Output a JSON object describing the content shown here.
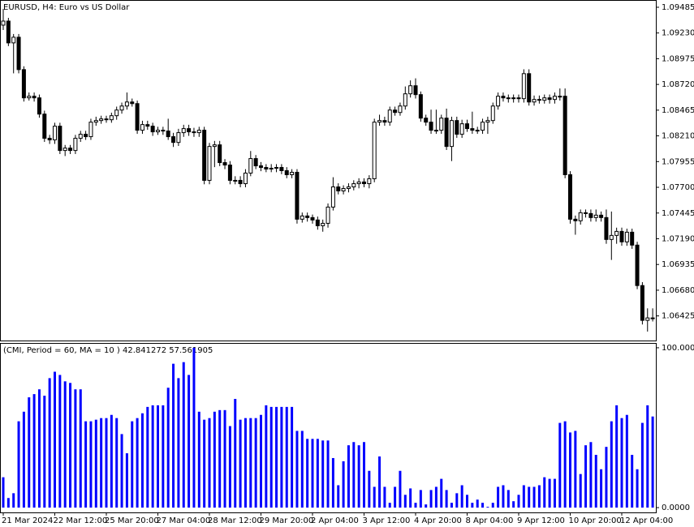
{
  "chart_data": [
    {
      "type": "candlestick",
      "title": "EURUSD, H4:  Euro vs US Dollar",
      "categories": [
        "21 Mar 2024",
        null,
        null,
        null,
        null,
        null,
        null,
        null,
        null,
        null,
        "22 Mar 12:00",
        null,
        null,
        null,
        null,
        null,
        null,
        null,
        null,
        null,
        "25 Mar 20:00",
        null,
        null,
        null,
        null,
        null,
        null,
        null,
        null,
        null,
        "27 Mar 04:00",
        null,
        null,
        null,
        null,
        null,
        null,
        null,
        null,
        null,
        "28 Mar 12:00",
        null,
        null,
        null,
        null,
        null,
        null,
        null,
        null,
        null,
        "29 Mar 20:00",
        null,
        null,
        null,
        null,
        null,
        null,
        null,
        null,
        null,
        "2 Apr 04:00",
        null,
        null,
        null,
        null,
        null,
        null,
        null,
        null,
        null,
        "3 Apr 12:00",
        null,
        null,
        null,
        null,
        null,
        null,
        null,
        null,
        null,
        "4 Apr 20:00",
        null,
        null,
        null,
        null,
        null,
        null,
        null,
        null,
        null,
        "8 Apr 04:00",
        null,
        null,
        null,
        null,
        null,
        null,
        null,
        null,
        null,
        "9 Apr 12:00",
        null,
        null,
        null,
        null,
        null,
        null,
        null,
        null,
        null,
        "10 Apr 20:00",
        null,
        null,
        null,
        null,
        null,
        null,
        null,
        null,
        null,
        "12 Apr 04:00",
        null,
        null,
        null,
        null,
        null,
        null
      ],
      "open": [
        1.09308,
        1.09348,
        1.09132,
        1.09188,
        1.08867,
        1.08587,
        1.08603,
        1.08587,
        1.08426,
        1.08186,
        1.0817,
        1.08306,
        1.08065,
        1.08089,
        1.08065,
        1.08186,
        1.08226,
        1.08202,
        1.08346,
        1.08362,
        1.08378,
        1.0837,
        1.0841,
        1.08466,
        1.08506,
        1.08546,
        1.0853,
        1.08266,
        1.08322,
        1.08306,
        1.0825,
        1.08266,
        1.08258,
        1.08202,
        1.08145,
        1.08242,
        1.08282,
        1.0825,
        1.08242,
        1.08266,
        1.07769,
        1.08105,
        1.08121,
        1.07945,
        1.07921,
        1.07769,
        1.07769,
        1.07736,
        1.07841,
        1.07985,
        1.07913,
        1.07897,
        1.07881,
        1.07889,
        1.07897,
        1.07865,
        1.07825,
        1.07849,
        1.07384,
        1.07416,
        1.074,
        1.07376,
        1.07319,
        1.07343,
        1.07504,
        1.07704,
        1.07664,
        1.07688,
        1.07704,
        1.07736,
        1.07753,
        1.07736,
        1.07785,
        1.08346,
        1.08362,
        1.08346,
        1.08466,
        1.08442,
        1.08506,
        1.08627,
        1.08707,
        1.08619,
        1.08386,
        1.08346,
        1.08266,
        1.08266,
        1.08386,
        1.08105,
        1.08362,
        1.08226,
        1.0833,
        1.08282,
        1.08266,
        1.08266,
        1.08346,
        1.08362,
        1.08506,
        1.08603,
        1.08587,
        1.08579,
        1.08587,
        1.08579,
        1.08827,
        1.08546,
        1.08571,
        1.08563,
        1.08587,
        1.08571,
        1.08603,
        1.08603,
        1.07825,
        1.07384,
        1.07368,
        1.07448,
        1.0744,
        1.074,
        1.07424,
        1.074,
        1.07183,
        1.07223,
        1.07263,
        1.07159,
        1.07255,
        1.07127,
        1.06726,
        1.06381,
        1.06405
      ],
      "high": [
        1.09469,
        1.0938,
        1.0922,
        1.0922,
        1.089,
        1.0864,
        1.0864,
        1.0862,
        1.0846,
        1.0822,
        1.0834,
        1.0834,
        1.0812,
        1.0812,
        1.0822,
        1.0826,
        1.0826,
        1.0838,
        1.084,
        1.0841,
        1.0841,
        1.0844,
        1.085,
        1.0854,
        1.0864,
        1.0858,
        1.0856,
        1.0836,
        1.0836,
        1.0834,
        1.083,
        1.083,
        1.0838,
        1.0824,
        1.0828,
        1.0832,
        1.0832,
        1.0829,
        1.083,
        1.083,
        1.0814,
        1.0816,
        1.0816,
        1.0798,
        1.0796,
        1.0781,
        1.0781,
        1.0788,
        1.0806,
        1.0802,
        1.0795,
        1.0793,
        1.0793,
        1.0793,
        1.0793,
        1.079,
        1.0788,
        1.0788,
        1.0745,
        1.0745,
        1.0743,
        1.0741,
        1.0738,
        1.0754,
        1.078,
        1.0774,
        1.0772,
        1.0774,
        1.0777,
        1.0779,
        1.0779,
        1.0782,
        1.0838,
        1.0842,
        1.084,
        1.085,
        1.085,
        1.0854,
        1.087,
        1.0876,
        1.0878,
        1.0865,
        1.0842,
        1.0847,
        1.0847,
        1.0842,
        1.0848,
        1.084,
        1.084,
        1.0837,
        1.0837,
        1.0845,
        1.083,
        1.0838,
        1.084,
        1.0854,
        1.0864,
        1.0864,
        1.0862,
        1.0862,
        1.0862,
        1.0887,
        1.0887,
        1.0861,
        1.0861,
        1.0862,
        1.0862,
        1.0864,
        1.0868,
        1.0868,
        1.0786,
        1.0742,
        1.0748,
        1.0748,
        1.0748,
        1.0748,
        1.0746,
        1.0748,
        1.0746,
        1.073,
        1.073,
        1.0729,
        1.0729,
        1.0716,
        1.0676,
        1.065,
        1.065
      ],
      "low": [
        1.0926,
        1.091,
        1.0883,
        1.0883,
        1.0855,
        1.0856,
        1.0855,
        1.0839,
        1.0815,
        1.0813,
        1.0813,
        1.0803,
        1.0801,
        1.0803,
        1.0803,
        1.0815,
        1.0817,
        1.0817,
        1.0831,
        1.0833,
        1.0834,
        1.0834,
        1.0837,
        1.0843,
        1.0847,
        1.085,
        1.0823,
        1.0823,
        1.0827,
        1.0821,
        1.0822,
        1.0822,
        1.0817,
        1.081,
        1.0811,
        1.082,
        1.0821,
        1.082,
        1.082,
        1.0773,
        1.0773,
        1.079,
        1.0791,
        1.0788,
        1.0773,
        1.0773,
        1.077,
        1.077,
        1.0781,
        1.0788,
        1.0786,
        1.0785,
        1.0785,
        1.0785,
        1.0783,
        1.0779,
        1.0779,
        1.0734,
        1.0735,
        1.0736,
        1.0734,
        1.0728,
        1.0726,
        1.073,
        1.0747,
        1.0763,
        1.0763,
        1.0765,
        1.0767,
        1.0769,
        1.077,
        1.0769,
        1.0775,
        1.0831,
        1.0831,
        1.0831,
        1.0841,
        1.0841,
        1.0847,
        1.0859,
        1.0858,
        1.0835,
        1.0831,
        1.0823,
        1.0823,
        1.0823,
        1.0807,
        1.0796,
        1.0819,
        1.0819,
        1.0825,
        1.0823,
        1.0823,
        1.0823,
        1.0823,
        1.0833,
        1.0847,
        1.0855,
        1.0854,
        1.0854,
        1.0854,
        1.0854,
        1.0851,
        1.0851,
        1.0853,
        1.0853,
        1.0853,
        1.0853,
        1.0856,
        1.0779,
        1.0734,
        1.0723,
        1.0733,
        1.074,
        1.0736,
        1.0736,
        1.0736,
        1.0714,
        1.0698,
        1.0714,
        1.0712,
        1.0712,
        1.0709,
        1.0669,
        1.0634,
        1.0627,
        1.0637
      ],
      "close": [
        1.09348,
        1.09132,
        1.09188,
        1.08867,
        1.08587,
        1.08603,
        1.08587,
        1.08426,
        1.08186,
        1.0817,
        1.08306,
        1.08065,
        1.08089,
        1.08065,
        1.08186,
        1.08226,
        1.08202,
        1.08346,
        1.08362,
        1.08378,
        1.0837,
        1.0841,
        1.08466,
        1.08506,
        1.08546,
        1.0853,
        1.08266,
        1.08322,
        1.08306,
        1.0825,
        1.08266,
        1.08258,
        1.08202,
        1.08145,
        1.08242,
        1.08282,
        1.0825,
        1.08242,
        1.08266,
        1.07769,
        1.08105,
        1.08121,
        1.07945,
        1.07921,
        1.07769,
        1.07769,
        1.07736,
        1.07841,
        1.07985,
        1.07913,
        1.07897,
        1.07881,
        1.07889,
        1.07897,
        1.07865,
        1.07825,
        1.07849,
        1.07384,
        1.07416,
        1.074,
        1.07376,
        1.07319,
        1.07343,
        1.07504,
        1.07704,
        1.07664,
        1.07688,
        1.07704,
        1.07736,
        1.07753,
        1.07736,
        1.07785,
        1.08346,
        1.08362,
        1.08346,
        1.08466,
        1.08442,
        1.08506,
        1.08627,
        1.08707,
        1.08619,
        1.08386,
        1.08346,
        1.08266,
        1.08266,
        1.08386,
        1.08105,
        1.08362,
        1.08226,
        1.0833,
        1.08282,
        1.08266,
        1.08266,
        1.08346,
        1.08362,
        1.08506,
        1.08603,
        1.08587,
        1.08579,
        1.08587,
        1.08579,
        1.08827,
        1.08546,
        1.08571,
        1.08563,
        1.08587,
        1.08571,
        1.08603,
        1.08603,
        1.07825,
        1.07384,
        1.07368,
        1.07448,
        1.0744,
        1.074,
        1.07424,
        1.074,
        1.07183,
        1.07223,
        1.07263,
        1.07159,
        1.07255,
        1.07127,
        1.06726,
        1.06381,
        1.06405,
        1.06405
      ],
      "up_color": "#ffffff",
      "down_color": "#000000",
      "outline_color": "#000000",
      "ylim": [
        1.06181,
        1.09549
      ],
      "yticks": [
        1.09485,
        {
          "value": 1.0923,
          "label": "1.09230"
        },
        1.08975,
        {
          "value": 1.0872,
          "label": "1.08720"
        },
        1.08465,
        {
          "value": 1.0821,
          "label": "1.08210"
        },
        1.07955,
        {
          "value": 1.077,
          "label": "1.07700"
        },
        1.07445,
        {
          "value": 1.0719,
          "label": "1.07190"
        },
        1.06935,
        {
          "value": 1.0668,
          "label": "1.06680"
        },
        1.06425
      ]
    },
    {
      "type": "bar",
      "title": "(CMI, Period = 60, MA = 10 ) 42.841272 57.561905",
      "values": [
        19,
        6,
        9,
        54,
        60,
        69,
        71,
        74,
        70,
        81,
        85,
        83,
        79,
        78,
        74,
        74,
        54,
        54,
        55,
        56,
        56,
        58,
        56,
        46,
        34,
        54,
        56,
        59,
        63,
        64,
        64,
        64,
        75,
        90,
        81,
        91,
        83,
        100,
        60,
        55,
        56,
        60,
        61,
        61,
        51,
        68,
        55,
        56,
        56,
        56,
        58,
        64,
        63,
        63,
        63,
        63,
        63,
        48,
        48,
        43,
        43,
        43,
        42,
        42,
        31,
        14,
        29,
        39,
        41,
        39,
        41,
        23,
        13,
        32,
        13,
        3,
        13,
        23,
        8,
        12,
        3,
        11,
        2,
        11,
        13,
        18,
        11,
        3,
        9,
        14,
        8,
        3,
        5,
        3,
        0.5,
        3,
        13,
        14,
        11,
        4,
        8,
        14,
        13,
        13,
        14,
        19,
        18,
        18,
        53,
        54,
        47,
        48,
        21,
        39,
        41,
        33,
        24,
        38,
        54,
        64,
        56,
        58,
        33,
        24,
        53,
        64,
        57
      ],
      "color": "#0000ff",
      "ylim": [
        -3,
        102.5
      ],
      "yticks": [
        {
          "value": 100,
          "label": "100.0000"
        },
        {
          "value": 0,
          "label": "0.0000"
        }
      ]
    }
  ]
}
